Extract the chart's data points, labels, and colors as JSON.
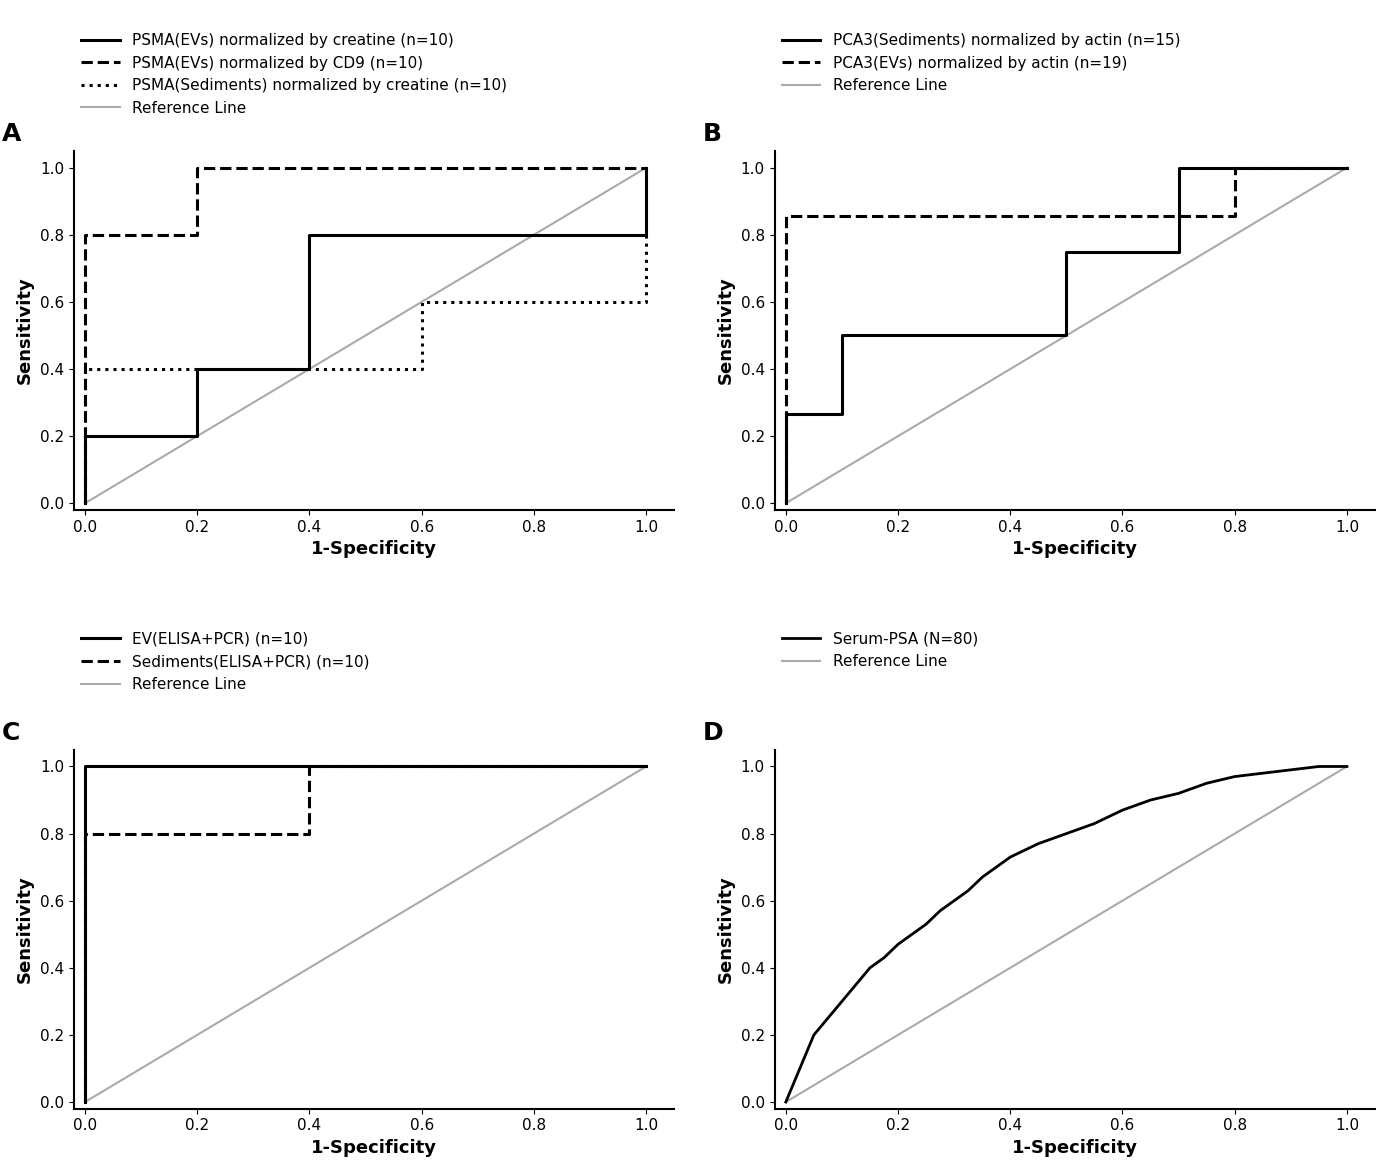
{
  "panel_A": {
    "title": "A",
    "curves": [
      {
        "label": "PSMA(EVs) normalized by creatine (n=10)",
        "linestyle": "solid",
        "color": "#000000",
        "linewidth": 2.2,
        "x": [
          0.0,
          0.0,
          0.2,
          0.2,
          0.4,
          0.4,
          0.6,
          0.6,
          1.0,
          1.0
        ],
        "y": [
          0.0,
          0.2,
          0.2,
          0.4,
          0.4,
          0.8,
          0.8,
          0.8,
          0.8,
          1.0
        ]
      },
      {
        "label": "PSMA(EVs) normalized by CD9 (n=10)",
        "linestyle": "dashed",
        "color": "#000000",
        "linewidth": 2.2,
        "x": [
          0.0,
          0.0,
          0.2,
          0.2,
          1.0,
          1.0
        ],
        "y": [
          0.0,
          0.8,
          0.8,
          1.0,
          1.0,
          1.0
        ]
      },
      {
        "label": "PSMA(Sediments) normalized by creatine (n=10)",
        "linestyle": "dotted",
        "color": "#000000",
        "linewidth": 2.2,
        "x": [
          0.0,
          0.0,
          0.6,
          0.6,
          0.8,
          0.8,
          1.0,
          1.0
        ],
        "y": [
          0.0,
          0.4,
          0.4,
          0.6,
          0.6,
          0.6,
          0.6,
          1.0
        ]
      },
      {
        "label": "Reference Line",
        "linestyle": "solid",
        "color": "#aaaaaa",
        "linewidth": 1.5,
        "x": [
          0.0,
          1.0
        ],
        "y": [
          0.0,
          1.0
        ]
      }
    ]
  },
  "panel_B": {
    "title": "B",
    "curves": [
      {
        "label": "PCA3(Sediments) normalized by actin (n=15)",
        "linestyle": "solid",
        "color": "#000000",
        "linewidth": 2.2,
        "x": [
          0.0,
          0.0,
          0.1,
          0.1,
          0.5,
          0.5,
          0.7,
          0.7,
          1.0,
          1.0
        ],
        "y": [
          0.0,
          0.267,
          0.267,
          0.5,
          0.5,
          0.75,
          0.75,
          1.0,
          1.0,
          1.0
        ]
      },
      {
        "label": "PCA3(EVs) normalized by actin (n=19)",
        "linestyle": "dashed",
        "color": "#000000",
        "linewidth": 2.2,
        "x": [
          0.0,
          0.0,
          0.7,
          0.7,
          0.8,
          0.8,
          1.0,
          1.0
        ],
        "y": [
          0.0,
          0.857,
          0.857,
          0.857,
          0.857,
          1.0,
          1.0,
          1.0
        ]
      },
      {
        "label": "Reference Line",
        "linestyle": "solid",
        "color": "#aaaaaa",
        "linewidth": 1.5,
        "x": [
          0.0,
          1.0
        ],
        "y": [
          0.0,
          1.0
        ]
      }
    ]
  },
  "panel_C": {
    "title": "C",
    "curves": [
      {
        "label": "EV(ELISA+PCR) (n=10)",
        "linestyle": "solid",
        "color": "#000000",
        "linewidth": 2.2,
        "x": [
          0.0,
          0.0,
          1.0,
          1.0
        ],
        "y": [
          0.0,
          1.0,
          1.0,
          1.0
        ]
      },
      {
        "label": "Sediments(ELISA+PCR) (n=10)",
        "linestyle": "dashed",
        "color": "#000000",
        "linewidth": 2.2,
        "x": [
          0.0,
          0.0,
          0.4,
          0.4,
          1.0,
          1.0
        ],
        "y": [
          0.0,
          0.8,
          0.8,
          1.0,
          1.0,
          1.0
        ]
      },
      {
        "label": "Reference Line",
        "linestyle": "solid",
        "color": "#aaaaaa",
        "linewidth": 1.5,
        "x": [
          0.0,
          1.0
        ],
        "y": [
          0.0,
          1.0
        ]
      }
    ]
  },
  "panel_D": {
    "title": "D",
    "curves": [
      {
        "label": "Serum-PSA (N=80)",
        "linestyle": "solid",
        "color": "#000000",
        "linewidth": 2.0,
        "x": [
          0.0,
          0.025,
          0.05,
          0.075,
          0.1,
          0.125,
          0.15,
          0.175,
          0.2,
          0.225,
          0.25,
          0.275,
          0.3,
          0.325,
          0.35,
          0.375,
          0.4,
          0.45,
          0.5,
          0.55,
          0.6,
          0.65,
          0.7,
          0.75,
          0.8,
          0.85,
          0.9,
          0.95,
          1.0
        ],
        "y": [
          0.0,
          0.1,
          0.2,
          0.25,
          0.3,
          0.35,
          0.4,
          0.43,
          0.47,
          0.5,
          0.53,
          0.57,
          0.6,
          0.63,
          0.67,
          0.7,
          0.73,
          0.77,
          0.8,
          0.83,
          0.87,
          0.9,
          0.92,
          0.95,
          0.97,
          0.98,
          0.99,
          1.0,
          1.0
        ]
      },
      {
        "label": "Reference Line",
        "linestyle": "solid",
        "color": "#aaaaaa",
        "linewidth": 1.5,
        "x": [
          0.0,
          1.0
        ],
        "y": [
          0.0,
          1.0
        ]
      }
    ]
  },
  "xlabel": "1-Specificity",
  "ylabel": "Sensitivity",
  "axis_ticks": [
    0.0,
    0.2,
    0.4,
    0.6,
    0.8,
    1.0
  ],
  "axis_lim": [
    -0.02,
    1.05
  ],
  "fontsize_label": 13,
  "fontsize_tick": 11,
  "fontsize_legend": 11,
  "fontsize_panel": 18,
  "background_color": "#ffffff"
}
